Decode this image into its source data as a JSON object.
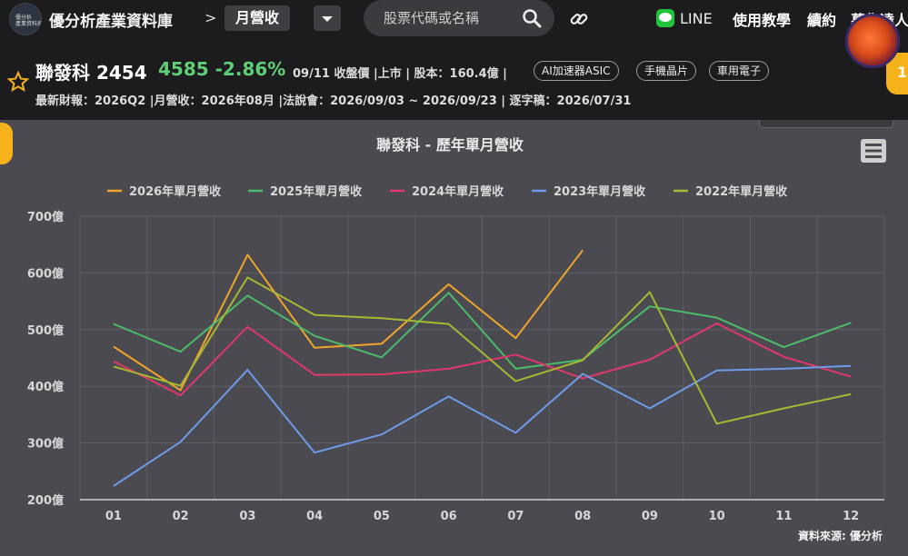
{
  "header": {
    "logo_text": "優分析\n產業資料庫",
    "site_title": "優分析產業資料庫",
    "breadcrumb_sep": ">",
    "current_page": "月營收",
    "search_placeholder": "股票代碼或名稱",
    "nav": {
      "line": "LINE",
      "tutorial": "使用教學",
      "renew": "續約",
      "more": "募集達人"
    }
  },
  "stock": {
    "name": "聯發科 2454",
    "price_change": "4585 -2.86%",
    "meta": "09/11 收盤價 |上市 | 股本：160.4億 |",
    "tags": [
      "AI加速器ASIC",
      "手機晶片",
      "車用電子"
    ],
    "info": "最新財報：2026Q2 |月營收：2026年08月 |法說會：2026/09/03 ~ 2026/09/23 | 逐字稿：2026/07/31",
    "side_badge": "1"
  },
  "colors": {
    "s2026": "#f0a52a",
    "s2025": "#4cbb6b",
    "s2024": "#e0386a",
    "s2023": "#6f9be8",
    "s2022": "#a8b832"
  },
  "chart_data": {
    "type": "line",
    "title": "聯發科 - 歷年單月營收",
    "source": "資料來源: 優分析",
    "categories": [
      "01",
      "02",
      "03",
      "04",
      "05",
      "06",
      "07",
      "08",
      "09",
      "10",
      "11",
      "12"
    ],
    "y_tick_labels": [
      "200億",
      "300億",
      "400億",
      "500億",
      "600億",
      "700億"
    ],
    "ylim": [
      200,
      700
    ],
    "grid": true,
    "legend_position": "top",
    "series": [
      {
        "name": "2026年單月營收",
        "values": [
          470,
          393,
          632,
          468,
          475,
          580,
          485,
          640,
          null,
          null,
          null,
          null
        ]
      },
      {
        "name": "2025年單月營收",
        "values": [
          510,
          461,
          560,
          489,
          451,
          565,
          431,
          447,
          541,
          521,
          469,
          512
        ]
      },
      {
        "name": "2024年單月營收",
        "values": [
          444,
          384,
          505,
          420,
          421,
          431,
          456,
          414,
          447,
          511,
          452,
          417
        ]
      },
      {
        "name": "2023年單月營收",
        "values": [
          224,
          302,
          429,
          283,
          315,
          382,
          318,
          422,
          361,
          428,
          431,
          436
        ]
      },
      {
        "name": "2022年單月營收",
        "values": [
          435,
          401,
          592,
          526,
          520,
          510,
          409,
          446,
          566,
          334,
          361,
          386
        ]
      }
    ]
  }
}
